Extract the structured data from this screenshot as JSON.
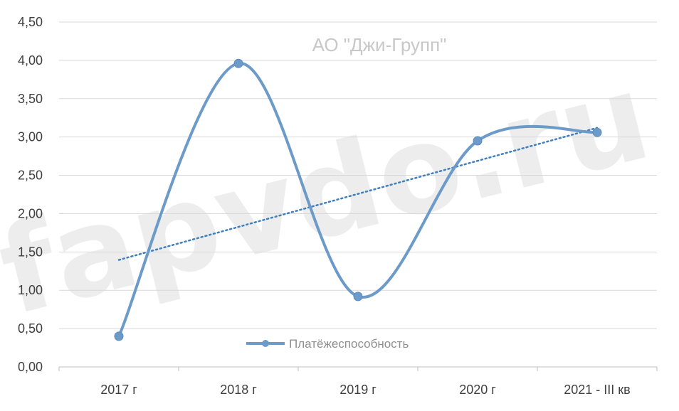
{
  "chart_data": {
    "type": "line",
    "title": "АО \"Джи-Групп\"",
    "categories": [
      "2017 г",
      "2018 г",
      "2019 г",
      "2020 г",
      "2021 - III кв"
    ],
    "series": [
      {
        "name": "Платёжеспособность",
        "values": [
          0.4,
          3.96,
          0.92,
          2.95,
          3.06
        ],
        "color": "#6d9bc9",
        "smooth": true
      }
    ],
    "trendline": {
      "type": "linear",
      "style": "dotted",
      "color": "#3f7fbf"
    },
    "ylim": [
      0,
      4.5
    ],
    "yticks": [
      "0,00",
      "0,50",
      "1,00",
      "1,50",
      "2,00",
      "2,50",
      "3,00",
      "3,50",
      "4,00",
      "4,50"
    ],
    "grid": true,
    "legend": "center",
    "watermark": "fapvdo.ru"
  }
}
